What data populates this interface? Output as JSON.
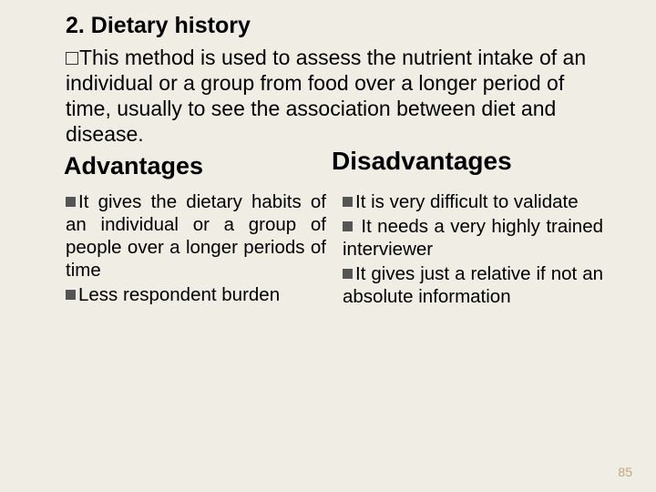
{
  "colors": {
    "background": "#f0eee4",
    "text": "#000000",
    "bullet": "#555555",
    "pagenum": "#bba87a"
  },
  "title": "2. Dietary history",
  "intro": "This method is used to assess the nutrient intake of an individual or a group from food over a longer period of time, usually to see the association between diet and disease.",
  "advantages_heading": "Advantages",
  "disadvantages_heading": "Disadvantages",
  "advantages": [
    "It gives the dietary habits of an individual or a group of people over a longer periods of time",
    "Less respondent burden"
  ],
  "disadvantages": [
    "It is very difficult to validate",
    " It needs a very highly trained interviewer",
    "It gives just a relative if not an absolute information"
  ],
  "page_number": "85"
}
